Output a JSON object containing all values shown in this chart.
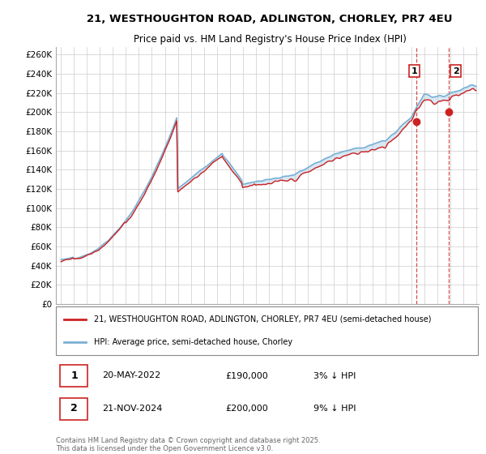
{
  "title_line1": "21, WESTHOUGHTON ROAD, ADLINGTON, CHORLEY, PR7 4EU",
  "title_line2": "Price paid vs. HM Land Registry's House Price Index (HPI)",
  "ylabel_ticks": [
    "£0",
    "£20K",
    "£40K",
    "£60K",
    "£80K",
    "£100K",
    "£120K",
    "£140K",
    "£160K",
    "£180K",
    "£200K",
    "£220K",
    "£240K",
    "£260K"
  ],
  "ytick_values": [
    0,
    20000,
    40000,
    60000,
    80000,
    100000,
    120000,
    140000,
    160000,
    180000,
    200000,
    220000,
    240000,
    260000
  ],
  "x_start_year": 1995,
  "x_end_year": 2027,
  "hpi_color": "#7ab0d4",
  "price_color": "#cc2222",
  "background_color": "#ffffff",
  "plot_bg_color": "#ffffff",
  "grid_color": "#cccccc",
  "legend_label_red": "21, WESTHOUGHTON ROAD, ADLINGTON, CHORLEY, PR7 4EU (semi-detached house)",
  "legend_label_blue": "HPI: Average price, semi-detached house, Chorley",
  "annotation1_label": "1",
  "annotation1_date": "20-MAY-2022",
  "annotation1_price": "£190,000",
  "annotation1_hpi": "3% ↓ HPI",
  "annotation1_year": 2022.38,
  "annotation1_value": 190000,
  "annotation2_label": "2",
  "annotation2_date": "21-NOV-2024",
  "annotation2_price": "£200,000",
  "annotation2_hpi": "9% ↓ HPI",
  "annotation2_year": 2024.89,
  "annotation2_value": 200000,
  "footer": "Contains HM Land Registry data © Crown copyright and database right 2025.\nThis data is licensed under the Open Government Licence v3.0.",
  "shade_color": "#c8dff0"
}
